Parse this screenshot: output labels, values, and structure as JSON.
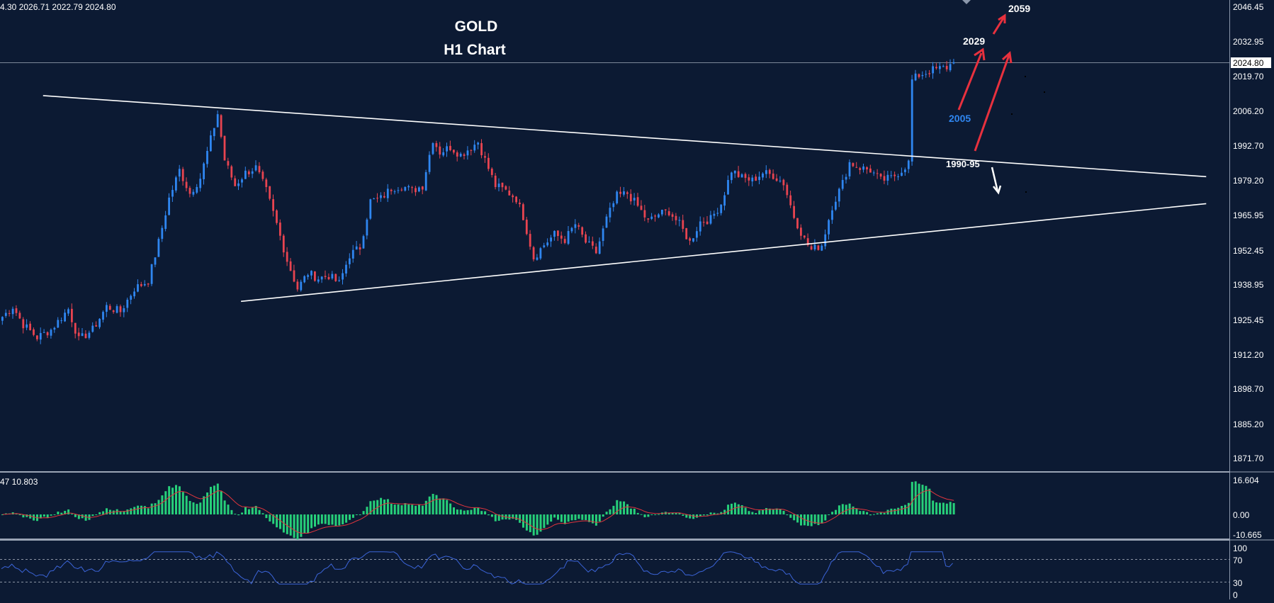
{
  "header": {
    "ohlc": "4.30 2026.71 2022.79 2024.80"
  },
  "colors": {
    "background": "#0c1a33",
    "bull": "#2f86f0",
    "bear": "#e84450",
    "trendline": "#ffffff",
    "histogram": "#27d07a",
    "signal": "#e0353d",
    "rsi": "#3b64d8",
    "arrow_red": "#e8313e",
    "label_blue": "#2f86f0"
  },
  "chart_data": [
    {
      "type": "candlestick",
      "title": "GOLD",
      "subtitle": "H1 Chart",
      "instrument": "GOLD",
      "timeframe": "H1",
      "ylim": [
        1862.0,
        2052.0
      ],
      "y_ticks": [
        "2046.45",
        "2032.95",
        "2019.70",
        "2006.20",
        "1992.70",
        "1979.20",
        "1965.95",
        "1952.45",
        "1938.95",
        "1925.45",
        "1912.20",
        "1898.70",
        "1885.20",
        "1871.70"
      ],
      "current_price": "2024.80",
      "close_anchors": [
        [
          0,
          1926
        ],
        [
          3,
          1930
        ],
        [
          6,
          1923
        ],
        [
          10,
          1918
        ],
        [
          14,
          1921
        ],
        [
          19,
          1929
        ],
        [
          22,
          1917
        ],
        [
          26,
          1921
        ],
        [
          30,
          1930
        ],
        [
          34,
          1928
        ],
        [
          38,
          1937
        ],
        [
          42,
          1940
        ],
        [
          45,
          1955
        ],
        [
          48,
          1972
        ],
        [
          51,
          1983
        ],
        [
          54,
          1974
        ],
        [
          57,
          1980
        ],
        [
          60,
          1995
        ],
        [
          62,
          2005
        ],
        [
          64,
          1987
        ],
        [
          67,
          1977
        ],
        [
          70,
          1982
        ],
        [
          73,
          1984
        ],
        [
          76,
          1975
        ],
        [
          79,
          1962
        ],
        [
          82,
          1948
        ],
        [
          85,
          1937
        ],
        [
          88,
          1943
        ],
        [
          91,
          1941
        ],
        [
          94,
          1942
        ],
        [
          97,
          1939
        ],
        [
          100,
          1950
        ],
        [
          103,
          1953
        ],
        [
          106,
          1971
        ],
        [
          109,
          1972
        ],
        [
          112,
          1976
        ],
        [
          115,
          1977
        ],
        [
          118,
          1975
        ],
        [
          121,
          1977
        ],
        [
          124,
          1995
        ],
        [
          126,
          1990
        ],
        [
          129,
          1992
        ],
        [
          132,
          1989
        ],
        [
          134,
          1991
        ],
        [
          137,
          1994
        ],
        [
          139,
          1987
        ],
        [
          142,
          1977
        ],
        [
          145,
          1975
        ],
        [
          148,
          1972
        ],
        [
          150,
          1965
        ],
        [
          153,
          1949
        ],
        [
          156,
          1954
        ],
        [
          159,
          1958
        ],
        [
          162,
          1956
        ],
        [
          165,
          1962
        ],
        [
          168,
          1955
        ],
        [
          171,
          1951
        ],
        [
          174,
          1964
        ],
        [
          177,
          1973
        ],
        [
          180,
          1974
        ],
        [
          183,
          1969
        ],
        [
          186,
          1963
        ],
        [
          189,
          1966
        ],
        [
          192,
          1967
        ],
        [
          195,
          1962
        ],
        [
          198,
          1955
        ],
        [
          201,
          1963
        ],
        [
          204,
          1964
        ],
        [
          207,
          1970
        ],
        [
          210,
          1983
        ],
        [
          213,
          1980
        ],
        [
          216,
          1979
        ],
        [
          219,
          1982
        ],
        [
          222,
          1981
        ],
        [
          225,
          1978
        ],
        [
          228,
          1965
        ],
        [
          231,
          1956
        ],
        [
          233,
          1952
        ],
        [
          236,
          1954
        ],
        [
          239,
          1969
        ],
        [
          242,
          1978
        ],
        [
          244,
          1986
        ],
        [
          247,
          1984
        ],
        [
          250,
          1983
        ],
        [
          253,
          1979
        ],
        [
          256,
          1980
        ],
        [
          259,
          1983
        ],
        [
          261,
          1986
        ],
        [
          262,
          2018
        ],
        [
          264,
          2020
        ],
        [
          268,
          2022
        ],
        [
          272,
          2023
        ],
        [
          274,
          2025
        ]
      ],
      "annotations": [
        {
          "text": "2059",
          "price": 2059,
          "color": "#ffffff"
        },
        {
          "text": "2029",
          "price": 2029,
          "color": "#ffffff"
        },
        {
          "text": "2005",
          "price": 2005,
          "color": "#2f86f0"
        },
        {
          "text": "1990-95",
          "price": 1992,
          "color": "#ffffff"
        }
      ],
      "trendlines": [
        {
          "name": "upper-resistance",
          "from": [
            12,
            2012
          ],
          "to": [
            347,
            1980.5
          ]
        },
        {
          "name": "lower-support",
          "from": [
            69,
            1932
          ],
          "to": [
            347,
            1970
          ]
        }
      ]
    },
    {
      "type": "histogram",
      "name": "MACD",
      "header_text": "47 10.803",
      "y_ticks": [
        "16.604",
        "0.00",
        "-10.665"
      ],
      "ylim": [
        -10.665,
        16.604
      ]
    },
    {
      "type": "line",
      "name": "RSI",
      "y_ticks": [
        "100",
        "70",
        "30",
        "0"
      ],
      "levels": [
        70,
        30
      ],
      "ylim": [
        0,
        100
      ]
    }
  ]
}
